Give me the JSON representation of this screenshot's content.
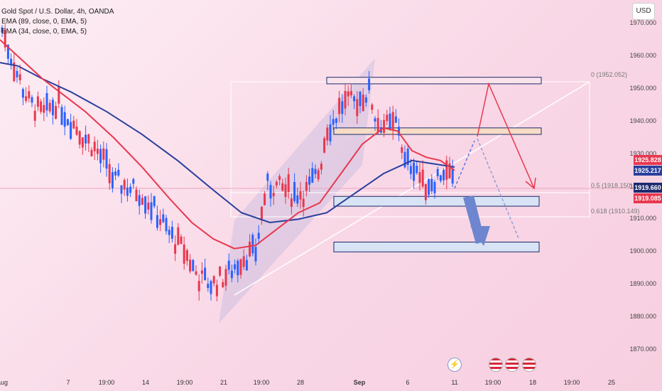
{
  "legend": {
    "title": "Gold Spot / U.S. Dollar, 4h, OANDA",
    "ema1": "EMA (89, close, 0, EMA, 5)",
    "ema2": "EMA (34, close, 0, EMA, 5)"
  },
  "currency_button": "USD",
  "price_tags": {
    "red": "1925.828",
    "blue": "1925.217",
    "last": "1919.660",
    "low": "1919.085"
  },
  "fib_labels": {
    "top": "0 (1952.052)",
    "mid": "0.5 (1918.150)",
    "low": "0.618 (1910.149)"
  },
  "colors": {
    "bull": "#2962ff",
    "bear": "#e8384f",
    "ema34": "#e8384f",
    "ema89": "#2a3f9c",
    "tag_red": "#e8384f",
    "tag_blue": "#2a3f9c",
    "tag_navy": "#1e2b6e"
  },
  "icons": [
    "flash-icon",
    "us-flag-icon",
    "us-flag-icon",
    "us-flag-icon"
  ],
  "chart_data": {
    "type": "candlestick",
    "symbol": "Gold Spot / U.S. Dollar",
    "timeframe": "4h",
    "y_ticks": [
      "1970.000",
      "1960.000",
      "1950.000",
      "1940.000",
      "1930.000",
      "1920.000",
      "1910.000",
      "1900.000",
      "1890.000",
      "1880.000",
      "1870.000"
    ],
    "x_ticks": [
      "Aug",
      "7",
      "19:00",
      "14",
      "19:00",
      "21",
      "19:00",
      "28",
      "Sep",
      "6",
      "11",
      "19:00",
      "18",
      "19:00",
      "25"
    ],
    "ylim": [
      1865,
      1975
    ],
    "ema_89": [
      [
        0,
        1958
      ],
      [
        25,
        1957
      ],
      [
        60,
        1953
      ],
      [
        100,
        1949
      ],
      [
        150,
        1943
      ],
      [
        200,
        1936
      ],
      [
        250,
        1928
      ],
      [
        300,
        1919
      ],
      [
        340,
        1912
      ],
      [
        380,
        1909
      ],
      [
        420,
        1910
      ],
      [
        460,
        1912
      ],
      [
        500,
        1918
      ],
      [
        540,
        1924
      ],
      [
        580,
        1928
      ],
      [
        610,
        1927
      ],
      [
        640,
        1926
      ]
    ],
    "ema_34": [
      [
        0,
        1965
      ],
      [
        30,
        1959
      ],
      [
        60,
        1953
      ],
      [
        90,
        1948
      ],
      [
        120,
        1943
      ],
      [
        160,
        1935
      ],
      [
        200,
        1926
      ],
      [
        240,
        1916
      ],
      [
        270,
        1909
      ],
      [
        300,
        1904
      ],
      [
        330,
        1901
      ],
      [
        360,
        1902
      ],
      [
        390,
        1907
      ],
      [
        420,
        1912
      ],
      [
        450,
        1915
      ],
      [
        480,
        1924
      ],
      [
        510,
        1933
      ],
      [
        540,
        1938
      ],
      [
        560,
        1937
      ],
      [
        580,
        1931
      ],
      [
        600,
        1929
      ],
      [
        620,
        1928
      ],
      [
        640,
        1925
      ]
    ],
    "zones": [
      {
        "from": 1951.5,
        "to": 1953.5
      },
      {
        "from": 1936,
        "to": 1938
      },
      {
        "from": 1914,
        "to": 1917
      },
      {
        "from": 1900,
        "to": 1903
      }
    ]
  }
}
